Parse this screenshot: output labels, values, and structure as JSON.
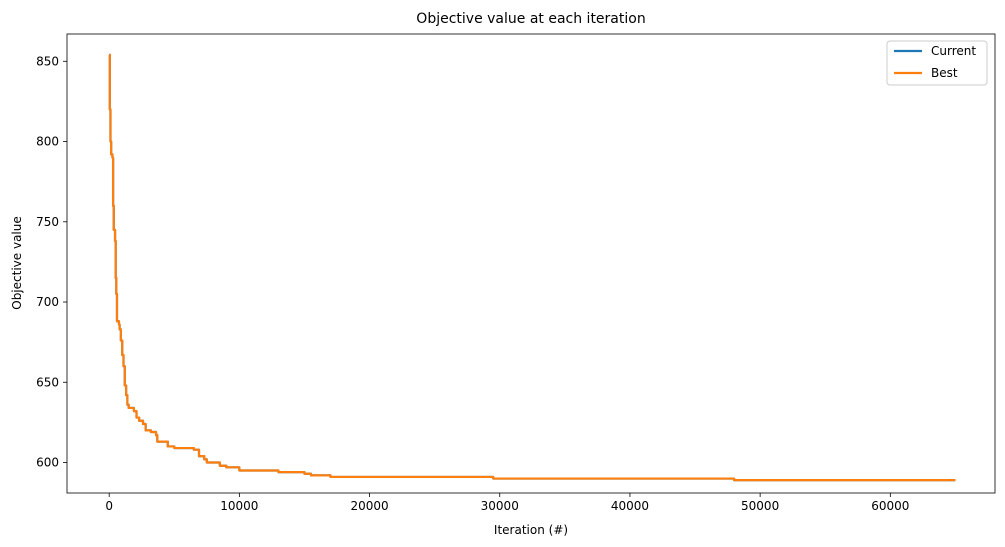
{
  "chart_data": {
    "type": "line",
    "title": "Objective value at each iteration",
    "xlabel": "Iteration (#)",
    "ylabel": "Objective value",
    "xlim": [
      -3240,
      68040
    ],
    "ylim": [
      581,
      867
    ],
    "xticks": [
      0,
      10000,
      20000,
      30000,
      40000,
      50000,
      60000
    ],
    "xtick_labels": [
      "0",
      "10000",
      "20000",
      "30000",
      "40000",
      "50000",
      "60000"
    ],
    "yticks": [
      600,
      650,
      700,
      750,
      800,
      850
    ],
    "ytick_labels": [
      "600",
      "650",
      "700",
      "750",
      "800",
      "850"
    ],
    "grid": false,
    "legend_position": "upper right",
    "series": [
      {
        "name": "Current",
        "color": "#1f77b4",
        "points": [
          [
            0,
            854
          ],
          [
            50,
            820
          ],
          [
            100,
            800
          ],
          [
            150,
            792
          ],
          [
            250,
            790
          ],
          [
            300,
            760
          ],
          [
            350,
            745
          ],
          [
            450,
            738
          ],
          [
            500,
            715
          ],
          [
            550,
            705
          ],
          [
            600,
            688
          ],
          [
            750,
            686
          ],
          [
            800,
            683
          ],
          [
            900,
            676
          ],
          [
            1000,
            667
          ],
          [
            1100,
            660
          ],
          [
            1200,
            648
          ],
          [
            1300,
            642
          ],
          [
            1400,
            636
          ],
          [
            1500,
            634
          ],
          [
            1900,
            632
          ],
          [
            2100,
            628
          ],
          [
            2300,
            626
          ],
          [
            2600,
            624
          ],
          [
            2800,
            620
          ],
          [
            3200,
            619
          ],
          [
            3600,
            617
          ],
          [
            3700,
            613
          ],
          [
            4500,
            610
          ],
          [
            5000,
            609
          ],
          [
            6500,
            608
          ],
          [
            6900,
            604
          ],
          [
            7300,
            602
          ],
          [
            7500,
            600
          ],
          [
            8500,
            598
          ],
          [
            9000,
            597
          ],
          [
            10000,
            595
          ],
          [
            13000,
            594
          ],
          [
            15000,
            593
          ],
          [
            15500,
            592
          ],
          [
            17000,
            591
          ],
          [
            29500,
            590
          ],
          [
            48000,
            589
          ],
          [
            65000,
            589
          ]
        ]
      },
      {
        "name": "Best",
        "color": "#ff7f0e",
        "points": [
          [
            0,
            854
          ],
          [
            50,
            820
          ],
          [
            100,
            800
          ],
          [
            150,
            792
          ],
          [
            250,
            790
          ],
          [
            300,
            760
          ],
          [
            350,
            745
          ],
          [
            450,
            738
          ],
          [
            500,
            715
          ],
          [
            550,
            705
          ],
          [
            600,
            688
          ],
          [
            750,
            686
          ],
          [
            800,
            683
          ],
          [
            900,
            676
          ],
          [
            1000,
            667
          ],
          [
            1100,
            660
          ],
          [
            1200,
            648
          ],
          [
            1300,
            642
          ],
          [
            1400,
            636
          ],
          [
            1500,
            634
          ],
          [
            1900,
            632
          ],
          [
            2100,
            628
          ],
          [
            2300,
            626
          ],
          [
            2600,
            624
          ],
          [
            2800,
            620
          ],
          [
            3200,
            619
          ],
          [
            3600,
            617
          ],
          [
            3700,
            613
          ],
          [
            4500,
            610
          ],
          [
            5000,
            609
          ],
          [
            6500,
            608
          ],
          [
            6900,
            604
          ],
          [
            7300,
            602
          ],
          [
            7500,
            600
          ],
          [
            8500,
            598
          ],
          [
            9000,
            597
          ],
          [
            10000,
            595
          ],
          [
            13000,
            594
          ],
          [
            15000,
            593
          ],
          [
            15500,
            592
          ],
          [
            17000,
            591
          ],
          [
            29500,
            590
          ],
          [
            48000,
            589
          ],
          [
            65000,
            589
          ]
        ]
      }
    ]
  }
}
